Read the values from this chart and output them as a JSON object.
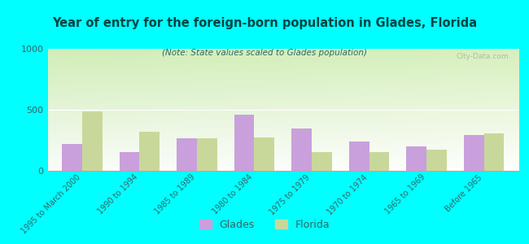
{
  "title": "Year of entry for the foreign-born population in Glades, Florida",
  "subtitle": "(Note: State values scaled to Glades population)",
  "categories": [
    "1995 to March 2000",
    "1990 to 1994",
    "1985 to 1989",
    "1980 to 1984",
    "1975 to 1979",
    "1970 to 1974",
    "1965 to 1969",
    "Before 1965"
  ],
  "glades_values": [
    220,
    155,
    265,
    460,
    345,
    240,
    200,
    295
  ],
  "florida_values": [
    490,
    320,
    270,
    275,
    155,
    155,
    175,
    310
  ],
  "glades_color": "#c9a0dc",
  "florida_color": "#c8d89a",
  "background_outer": "#00ffff",
  "ylim": [
    0,
    1000
  ],
  "yticks": [
    0,
    500,
    1000
  ],
  "bar_width": 0.35,
  "watermark": "City-Data.com",
  "legend_glades": "Glades",
  "legend_florida": "Florida",
  "title_color": "#004444",
  "subtitle_color": "#336666",
  "tick_color": "#336666"
}
